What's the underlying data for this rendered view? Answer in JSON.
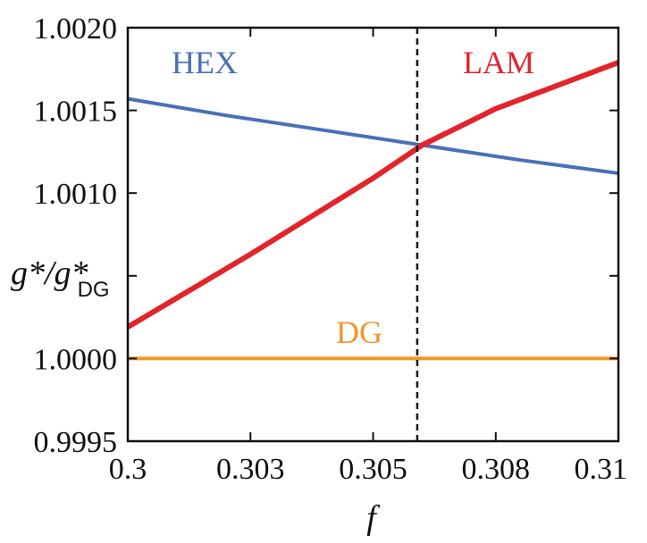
{
  "chart_data": {
    "type": "line",
    "xlabel": "f",
    "ylabel_main": "g*/g*",
    "ylabel_sub": "DG",
    "xlim": [
      0.3,
      0.31
    ],
    "ylim": [
      0.9995,
      1.002
    ],
    "xticks": [
      {
        "value": 0.3,
        "label": "0.3"
      },
      {
        "value": 0.3025,
        "label": "0.303"
      },
      {
        "value": 0.305,
        "label": "0.305"
      },
      {
        "value": 0.3075,
        "label": "0.308"
      },
      {
        "value": 0.31,
        "label": "0.31"
      }
    ],
    "yticks": [
      {
        "value": 0.9995,
        "label": "0.9995"
      },
      {
        "value": 1.0,
        "label": "1.0000"
      },
      {
        "value": 1.0005,
        "label": ""
      },
      {
        "value": 1.001,
        "label": "1.0010"
      },
      {
        "value": 1.0015,
        "label": "1.0015"
      },
      {
        "value": 1.002,
        "label": "1.0020"
      }
    ],
    "vline": {
      "x": 0.3059,
      "style": "dashed",
      "color": "#111111"
    },
    "grid": false,
    "series": [
      {
        "name": "HEX",
        "color": "#4a70b8",
        "x": [
          0.3,
          0.302,
          0.304,
          0.306,
          0.308,
          0.31
        ],
        "y": [
          1.00157,
          1.00147,
          1.00138,
          1.00129,
          1.0012,
          1.00112
        ]
      },
      {
        "name": "LAM",
        "color": "#e3242b",
        "x": [
          0.3,
          0.3025,
          0.305,
          0.306,
          0.3075,
          0.31
        ],
        "y": [
          1.00019,
          1.00063,
          1.00109,
          1.00129,
          1.00151,
          1.00179
        ]
      },
      {
        "name": "DG",
        "color": "#f0962e",
        "x": [
          0.3,
          0.31
        ],
        "y": [
          1.0,
          1.0
        ]
      }
    ]
  }
}
